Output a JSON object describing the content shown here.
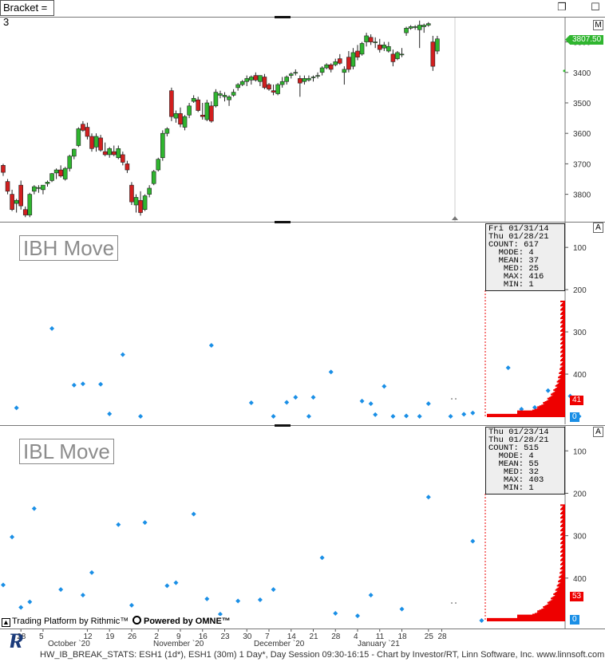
{
  "toolbar": {
    "bracket_label": "Bracket = 3",
    "restore_icon": "restore-window-icon",
    "max_icon": "maximize-window-icon"
  },
  "colors": {
    "up": "#2fb52f",
    "down": "#d21f1f",
    "dot": "#1a8fe6",
    "profile": "#ee0000",
    "grid": "#dddddd",
    "marker": "#1a8fe6"
  },
  "price_panel": {
    "button": "M",
    "last_price": "3807.50",
    "ticks": [
      "3800",
      "3700",
      "3600",
      "3500",
      "3400",
      "3300"
    ]
  },
  "ibh_panel": {
    "title": "IBH Move",
    "button": "A",
    "stats": [
      "Fri 01/31/14",
      "Thu 01/28/21",
      "COUNT: 617",
      "  MODE: 4",
      "  MEAN: 37",
      "   MED: 25",
      "   MAX: 416",
      "   MIN: 1"
    ],
    "ticks": [
      "400",
      "300",
      "200",
      "100"
    ],
    "tag_value": "41",
    "tag_zero": "0"
  },
  "ibl_panel": {
    "title": "IBL Move",
    "button": "A",
    "stats": [
      "Thu 01/23/14",
      "Thu 01/28/21",
      "COUNT: 515",
      "  MODE: 4",
      "  MEAN: 55",
      "   MED: 32",
      "   MAX: 403",
      "   MIN: 1"
    ],
    "ticks": [
      "400",
      "300",
      "200",
      "100"
    ],
    "tag_value": "53",
    "tag_zero": "0"
  },
  "branding": {
    "rithmic": "Trading Platform by Rithmic™",
    "omne": "Powered by OMNE™",
    "logo_letter": "R"
  },
  "footer": "HW_IB_BREAK_STATS: ESH1 (1d*), ESH1 (30m) 1 Day*, Day Session 09:30-16:15 - Chart by Investor/RT, Linn Software, Inc. www.linnsoft.com",
  "chart_data": [
    {
      "type": "candlestick",
      "title": "",
      "ylabel": "",
      "ylim": [
        3210,
        3880
      ],
      "ticks": [
        3300,
        3400,
        3500,
        3600,
        3700,
        3800
      ],
      "x_day_labels": [
        "28",
        "5",
        "12",
        "19",
        "26",
        "2",
        "9",
        "16",
        "23",
        "30",
        "7",
        "14",
        "21",
        "28",
        "4",
        "11",
        "18",
        "25",
        "28"
      ],
      "x_month_labels": [
        "October `20",
        "November `20",
        "December `20",
        "January `21"
      ],
      "ohlc": [
        [
          3395,
          3400,
          3360,
          3372
        ],
        [
          3342,
          3350,
          3300,
          3310
        ],
        [
          3300,
          3315,
          3245,
          3250
        ],
        [
          3270,
          3285,
          3240,
          3280
        ],
        [
          3330,
          3345,
          3250,
          3262
        ],
        [
          3250,
          3260,
          3225,
          3232
        ],
        [
          3232,
          3305,
          3225,
          3300
        ],
        [
          3310,
          3330,
          3300,
          3325
        ],
        [
          3320,
          3330,
          3305,
          3322
        ],
        [
          3315,
          3330,
          3300,
          3330
        ],
        [
          3335,
          3345,
          3325,
          3340
        ],
        [
          3345,
          3370,
          3340,
          3368
        ],
        [
          3370,
          3385,
          3350,
          3380
        ],
        [
          3380,
          3395,
          3355,
          3360
        ],
        [
          3350,
          3390,
          3345,
          3385
        ],
        [
          3385,
          3430,
          3375,
          3425
        ],
        [
          3425,
          3450,
          3415,
          3448
        ],
        [
          3460,
          3520,
          3455,
          3515
        ],
        [
          3530,
          3540,
          3505,
          3510
        ],
        [
          3520,
          3535,
          3480,
          3490
        ],
        [
          3490,
          3500,
          3440,
          3450
        ],
        [
          3455,
          3500,
          3440,
          3490
        ],
        [
          3485,
          3495,
          3440,
          3445
        ],
        [
          3440,
          3470,
          3425,
          3430
        ],
        [
          3430,
          3455,
          3420,
          3450
        ],
        [
          3440,
          3460,
          3425,
          3430
        ],
        [
          3420,
          3460,
          3415,
          3450
        ],
        [
          3430,
          3440,
          3395,
          3405
        ],
        [
          3400,
          3410,
          3370,
          3380
        ],
        [
          3330,
          3340,
          3265,
          3275
        ],
        [
          3265,
          3300,
          3240,
          3290
        ],
        [
          3280,
          3310,
          3230,
          3240
        ],
        [
          3250,
          3300,
          3245,
          3295
        ],
        [
          3300,
          3330,
          3290,
          3320
        ],
        [
          3335,
          3380,
          3330,
          3375
        ],
        [
          3380,
          3420,
          3375,
          3415
        ],
        [
          3420,
          3510,
          3410,
          3500
        ],
        [
          3500,
          3520,
          3490,
          3515
        ],
        [
          3640,
          3650,
          3540,
          3555
        ],
        [
          3550,
          3575,
          3535,
          3565
        ],
        [
          3565,
          3585,
          3520,
          3530
        ],
        [
          3520,
          3560,
          3510,
          3555
        ],
        [
          3560,
          3600,
          3550,
          3590
        ],
        [
          3605,
          3625,
          3600,
          3615
        ],
        [
          3610,
          3620,
          3570,
          3575
        ],
        [
          3560,
          3600,
          3545,
          3555
        ],
        [
          3545,
          3610,
          3540,
          3600
        ],
        [
          3590,
          3605,
          3535,
          3540
        ],
        [
          3590,
          3645,
          3585,
          3635
        ],
        [
          3625,
          3640,
          3615,
          3630
        ],
        [
          3620,
          3635,
          3605,
          3625
        ],
        [
          3610,
          3625,
          3590,
          3620
        ],
        [
          3625,
          3645,
          3620,
          3635
        ],
        [
          3650,
          3665,
          3640,
          3660
        ],
        [
          3660,
          3675,
          3655,
          3670
        ],
        [
          3670,
          3690,
          3655,
          3680
        ],
        [
          3675,
          3690,
          3660,
          3685
        ],
        [
          3690,
          3700,
          3670,
          3675
        ],
        [
          3670,
          3690,
          3655,
          3690
        ],
        [
          3685,
          3695,
          3645,
          3650
        ],
        [
          3660,
          3665,
          3640,
          3645
        ],
        [
          3640,
          3660,
          3625,
          3635
        ],
        [
          3630,
          3665,
          3625,
          3660
        ],
        [
          3660,
          3685,
          3650,
          3670
        ],
        [
          3670,
          3690,
          3660,
          3685
        ],
        [
          3690,
          3700,
          3680,
          3695
        ],
        [
          3700,
          3710,
          3690,
          3700
        ],
        [
          3680,
          3690,
          3620,
          3665
        ],
        [
          3670,
          3690,
          3660,
          3680
        ],
        [
          3675,
          3690,
          3670,
          3680
        ],
        [
          3685,
          3690,
          3670,
          3685
        ],
        [
          3690,
          3700,
          3680,
          3690
        ],
        [
          3700,
          3720,
          3690,
          3715
        ],
        [
          3715,
          3730,
          3710,
          3725
        ],
        [
          3725,
          3730,
          3700,
          3710
        ],
        [
          3725,
          3745,
          3720,
          3735
        ],
        [
          3745,
          3760,
          3725,
          3730
        ],
        [
          3700,
          3720,
          3660,
          3710
        ],
        [
          3750,
          3770,
          3700,
          3710
        ],
        [
          3720,
          3780,
          3710,
          3765
        ],
        [
          3770,
          3790,
          3740,
          3750
        ],
        [
          3760,
          3800,
          3755,
          3795
        ],
        [
          3800,
          3830,
          3785,
          3820
        ],
        [
          3815,
          3825,
          3790,
          3800
        ],
        [
          3800,
          3815,
          3780,
          3800
        ],
        [
          3790,
          3810,
          3765,
          3775
        ],
        [
          3780,
          3800,
          3770,
          3790
        ],
        [
          3770,
          3800,
          3765,
          3785
        ],
        [
          3760,
          3775,
          3720,
          3735
        ],
        [
          3745,
          3770,
          3740,
          3765
        ],
        [
          3760,
          3780,
          3750,
          3760
        ],
        [
          3830,
          3850,
          3820,
          3845
        ],
        [
          3845,
          3855,
          3840,
          3850
        ],
        [
          3850,
          3855,
          3840,
          3850
        ],
        [
          3840,
          3870,
          3780,
          3855
        ],
        [
          3850,
          3860,
          3830,
          3855
        ],
        [
          3855,
          3865,
          3850,
          3860
        ],
        [
          3800,
          3820,
          3705,
          3720
        ],
        [
          3770,
          3820,
          3760,
          3810
        ]
      ]
    },
    {
      "type": "scatter",
      "title": "IBH Move",
      "ylim": [
        0,
        440
      ],
      "ticks": [
        100,
        200,
        300,
        400
      ],
      "points": [
        [
          3,
          20
        ],
        [
          11,
          208
        ],
        [
          16,
          74
        ],
        [
          18,
          77
        ],
        [
          22,
          76
        ],
        [
          24,
          6
        ],
        [
          27,
          146
        ],
        [
          31,
          -4
        ],
        [
          47,
          168
        ],
        [
          56,
          32
        ],
        [
          61,
          -1
        ],
        [
          64,
          33
        ],
        [
          66,
          45
        ],
        [
          69,
          -1
        ],
        [
          70,
          45
        ],
        [
          74,
          105
        ],
        [
          81,
          36
        ],
        [
          83,
          30
        ],
        [
          84,
          4
        ],
        [
          86,
          71
        ],
        [
          88,
          -1
        ],
        [
          91,
          1
        ],
        [
          94,
          -1
        ],
        [
          96,
          30
        ],
        [
          101,
          -1
        ],
        [
          104,
          5
        ],
        [
          106,
          8
        ],
        [
          114,
          115
        ],
        [
          117,
          17
        ],
        [
          120,
          21
        ],
        [
          123,
          61
        ],
        [
          126,
          8
        ],
        [
          128,
          48
        ],
        [
          130,
          -1
        ]
      ],
      "profile_label_value": 41
    },
    {
      "type": "scatter",
      "title": "IBL Move",
      "ylim": [
        0,
        440
      ],
      "ticks": [
        100,
        200,
        300,
        400
      ],
      "points": [
        [
          0,
          84
        ],
        [
          2,
          197
        ],
        [
          4,
          31
        ],
        [
          6,
          44
        ],
        [
          7,
          264
        ],
        [
          13,
          73
        ],
        [
          18,
          60
        ],
        [
          20,
          113
        ],
        [
          26,
          226
        ],
        [
          29,
          36
        ],
        [
          32,
          231
        ],
        [
          37,
          82
        ],
        [
          39,
          89
        ],
        [
          43,
          251
        ],
        [
          46,
          51
        ],
        [
          49,
          15
        ],
        [
          53,
          46
        ],
        [
          58,
          49
        ],
        [
          61,
          73
        ],
        [
          72,
          148
        ],
        [
          75,
          17
        ],
        [
          80,
          11
        ],
        [
          83,
          60
        ],
        [
          90,
          27
        ],
        [
          96,
          291
        ],
        [
          106,
          187
        ],
        [
          108,
          -1
        ]
      ],
      "profile_label_value": 53
    }
  ]
}
